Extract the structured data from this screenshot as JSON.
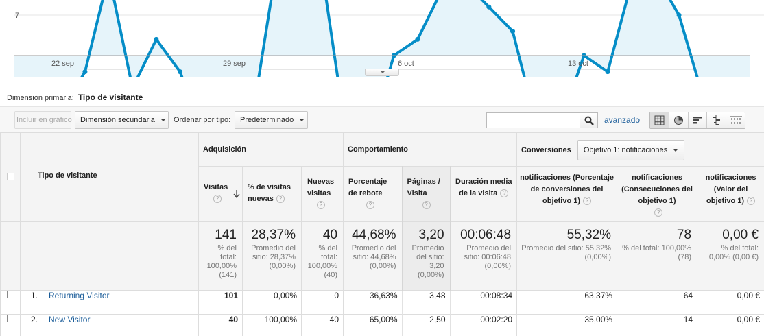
{
  "chart": {
    "y_tick_label": "7",
    "x_ticks": [
      "22 sep",
      "29 sep",
      "6 oct",
      "13 oct"
    ],
    "line_color": "#058dc7",
    "fill_color": "#e6f4fa"
  },
  "chart_data": {
    "type": "area",
    "series": [
      {
        "values": [
          5.8,
          5.5,
          5.8,
          6.3,
          7.5,
          6.1,
          6.7,
          6.3,
          5.5,
          5.65,
          5.65,
          7.5,
          7.5,
          7.5,
          5.5,
          5.5,
          6.5,
          6.7,
          7.3,
          7.4,
          7.1,
          6.8,
          5.65,
          5.65,
          6.5,
          6.3,
          7.4,
          7.5,
          7.0,
          6.0,
          5.5,
          5.5
        ]
      }
    ],
    "y_ticks": [
      7
    ],
    "x_labels": [
      "22 sep",
      "29 sep",
      "6 oct",
      "13 oct"
    ],
    "grid": true
  },
  "primary_dimension": {
    "label": "Dimensión primaria:",
    "value": "Tipo de visitante"
  },
  "toolbar": {
    "plot_rows": "Incluir en gráfico",
    "secondary_dimension": "Dimensión secundaria",
    "sort_label": "Ordenar por tipo:",
    "sort_value": "Predeterminado",
    "search_value": "",
    "advanced": "avanzado"
  },
  "table": {
    "dimension_header": "Tipo de visitante",
    "groups": {
      "acquisition": "Adquisición",
      "behavior": "Comportamiento",
      "conversions": "Conversiones",
      "goal_select": "Objetivo 1: notificaciones"
    },
    "columns": {
      "visits": "Visitas",
      "pct_new": "% de visitas nuevas",
      "new_visits": "Nuevas visitas",
      "bounce": "Porcentaje de rebote",
      "pages": "Páginas / Visita",
      "duration": "Duración media de la visita",
      "conv_rate": "notificaciones (Porcentaje de conversiones del objetivo 1)",
      "completions": "notificaciones (Consecuciones del objetivo 1)",
      "value": "notificaciones (Valor del objetivo 1)"
    },
    "help": "?",
    "totals": {
      "visits": {
        "big": "141",
        "sub": "% del total: 100,00% (141)"
      },
      "pct_new": {
        "big": "28,37%",
        "sub": "Promedio del sitio: 28,37% (0,00%)"
      },
      "new_visits": {
        "big": "40",
        "sub": "% del total: 100,00% (40)"
      },
      "bounce": {
        "big": "44,68%",
        "sub": "Promedio del sitio: 44,68% (0,00%)"
      },
      "pages": {
        "big": "3,20",
        "sub": "Promedio del sitio: 3,20 (0,00%)"
      },
      "duration": {
        "big": "00:06:48",
        "sub": "Promedio del sitio: 00:06:48 (0,00%)"
      },
      "conv_rate": {
        "big": "55,32%",
        "sub": "Promedio del sitio: 55,32% (0,00%)"
      },
      "completions": {
        "big": "78",
        "sub": "% del total: 100,00% (78)"
      },
      "value": {
        "big": "0,00 €",
        "sub": "% del total: 0,00% (0,00 €)"
      }
    },
    "rows": [
      {
        "index": "1.",
        "name": "Returning Visitor",
        "visits": "101",
        "pct_new": "0,00%",
        "new_visits": "0",
        "bounce": "36,63%",
        "pages": "3,48",
        "duration": "00:08:34",
        "conv_rate": "63,37%",
        "completions": "64",
        "value": "0,00 €"
      },
      {
        "index": "2.",
        "name": "New Visitor",
        "visits": "40",
        "pct_new": "100,00%",
        "new_visits": "40",
        "bounce": "65,00%",
        "pages": "2,50",
        "duration": "00:02:20",
        "conv_rate": "35,00%",
        "completions": "14",
        "value": "0,00 €"
      }
    ]
  }
}
